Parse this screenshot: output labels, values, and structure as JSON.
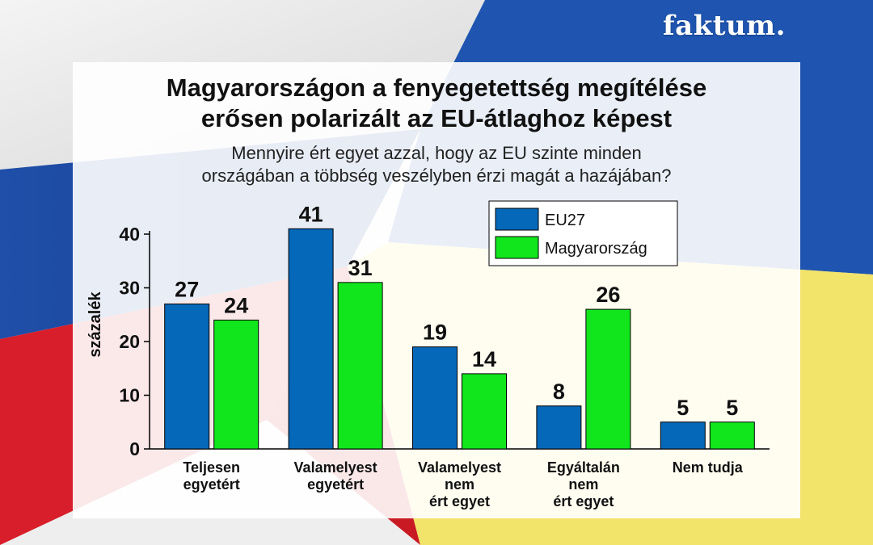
{
  "brand": {
    "name": "faktum."
  },
  "header": {
    "title_lines": [
      "Magyarországon a fenyegetettség megítélése",
      "erősen polarizált az EU-átlaghoz képest"
    ],
    "subtitle_lines": [
      "Mennyire ért egyet azzal, hogy az EU szinte minden",
      "országában a többség veszélyben érzi magát a hazájában?"
    ]
  },
  "colors": {
    "eu27": "#0668b8",
    "hungary": "#11e61c"
  },
  "chart_data": {
    "type": "bar",
    "categories": [
      [
        "Teljesen",
        "egyetért"
      ],
      [
        "Valamelyest",
        "egyetért"
      ],
      [
        "Valamelyest",
        "nem",
        "ért egyet"
      ],
      [
        "Egyáltalán",
        "nem",
        "ért egyet"
      ],
      [
        "Nem tudja"
      ]
    ],
    "series": [
      {
        "name": "EU27",
        "values": [
          27,
          41,
          19,
          8,
          5
        ]
      },
      {
        "name": "Magyarország",
        "values": [
          24,
          31,
          14,
          26,
          5
        ]
      }
    ],
    "ylabel": "százalék",
    "ylim": [
      0,
      40
    ],
    "yticks": [
      0,
      10,
      20,
      30,
      40
    ],
    "legend": "top-right",
    "grid": false
  }
}
